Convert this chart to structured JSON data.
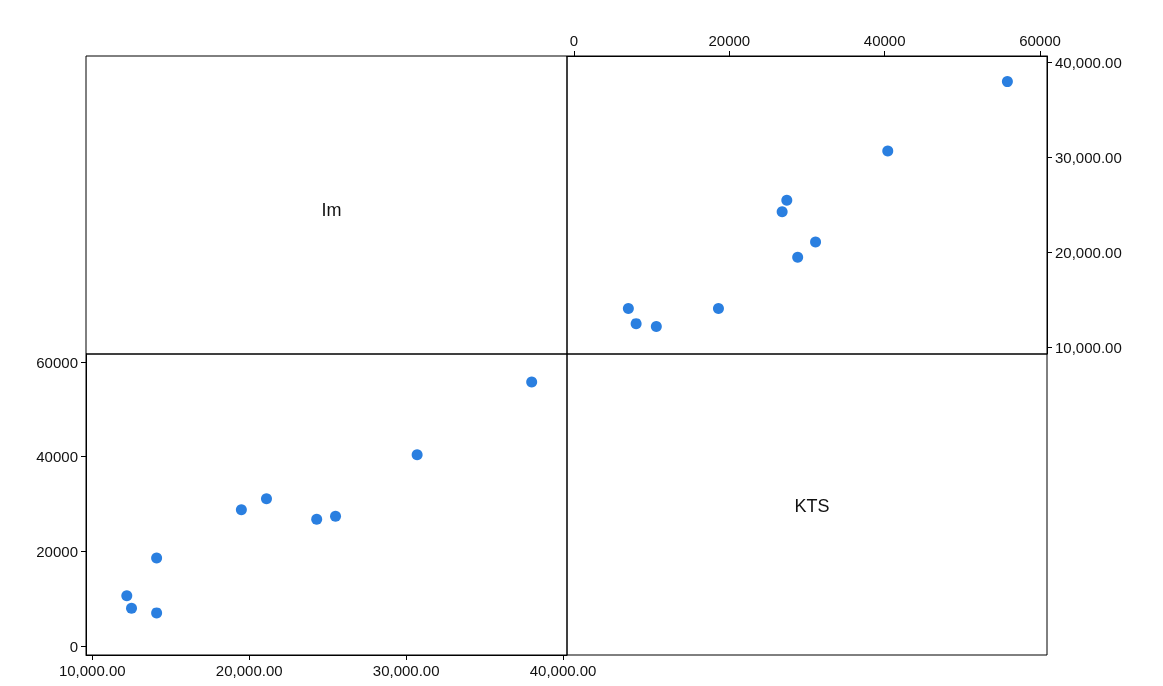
{
  "chart_data": [
    {
      "type": "other",
      "title": "Im"
    },
    {
      "type": "scatter",
      "marker": "circle",
      "grid": false,
      "x": [
        10600,
        8000,
        7000,
        18600,
        28800,
        31100,
        26800,
        27400,
        40400,
        55800
      ],
      "series": [
        {
          "color": "#2a7fe0",
          "values": [
            12200,
            12500,
            14100,
            14100,
            19500,
            21100,
            24300,
            25500,
            30700,
            38000
          ]
        }
      ],
      "xlim": [
        -900,
        60900
      ],
      "xticks": [
        0,
        20000,
        40000,
        60000
      ],
      "ylim": [
        9300,
        40700
      ],
      "yticks": [
        {
          "value": 10000,
          "label": "10,000.00"
        },
        {
          "value": 20000,
          "label": "20,000.00"
        },
        {
          "value": 30000,
          "label": "30,000.00"
        },
        {
          "value": 40000,
          "label": "40,000.00"
        }
      ]
    },
    {
      "type": "scatter",
      "marker": "circle",
      "grid": false,
      "x": [
        12200,
        12500,
        14100,
        14100,
        19500,
        21100,
        24300,
        25500,
        30700,
        38000
      ],
      "series": [
        {
          "color": "#2a7fe0",
          "values": [
            10600,
            8000,
            7000,
            18600,
            28800,
            31100,
            26800,
            27400,
            40400,
            55800
          ]
        }
      ],
      "xlim": [
        9600,
        40250
      ],
      "xticks": [
        {
          "value": 10000,
          "label": "10,000.00"
        },
        {
          "value": 20000,
          "label": "20,000.00"
        },
        {
          "value": 30000,
          "label": "30,000.00"
        },
        {
          "value": 40000,
          "label": "40,000.00"
        }
      ],
      "ylim": [
        -1900,
        61700
      ],
      "yticks": [
        0,
        20000,
        40000,
        60000
      ]
    },
    {
      "type": "other",
      "title": "KTS"
    }
  ]
}
